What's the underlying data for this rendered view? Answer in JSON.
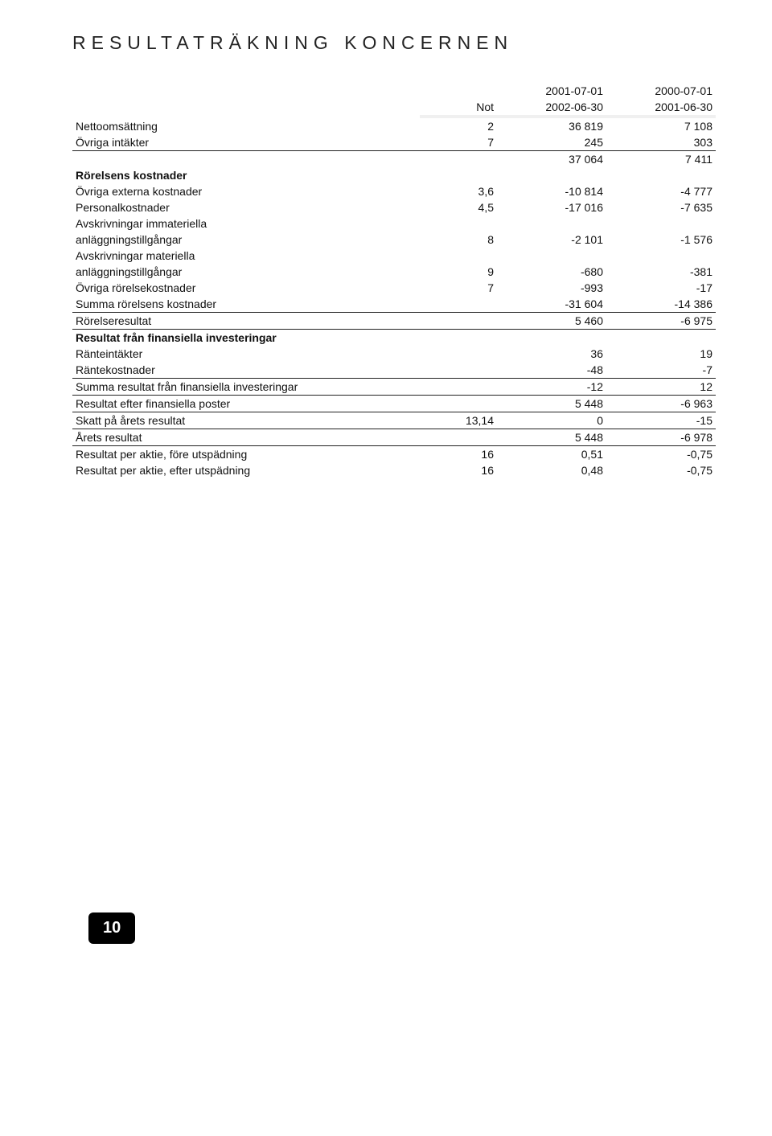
{
  "title": "RESULTATRÄKNING KONCERNEN",
  "header": {
    "not": "Not",
    "period1a": "2001-07-01",
    "period1b": "2002-06-30",
    "period2a": "2000-07-01",
    "period2b": "2001-06-30"
  },
  "r": {
    "netto": {
      "label": "Nettoomsättning",
      "not": "2",
      "v1": "36 819",
      "v2": "7 108"
    },
    "ovriga_int": {
      "label": "Övriga intäkter",
      "not": "7",
      "v1": "245",
      "v2": "303"
    },
    "sum_int": {
      "label": "",
      "not": "",
      "v1": "37 064",
      "v2": "7 411"
    },
    "rk_head": {
      "label": "Rörelsens kostnader"
    },
    "ext": {
      "label": "Övriga externa kostnader",
      "not": "3,6",
      "v1": "-10 814",
      "v2": "-4 777"
    },
    "pers": {
      "label": "Personalkostnader",
      "not": "4,5",
      "v1": "-17 016",
      "v2": "-7 635"
    },
    "avi_a": {
      "label": "Avskrivningar immateriella"
    },
    "avi_b": {
      "label": "anläggningstillgångar",
      "not": "8",
      "v1": "-2 101",
      "v2": "-1 576"
    },
    "avm_a": {
      "label": "Avskrivningar materiella"
    },
    "avm_b": {
      "label": "anläggningstillgångar",
      "not": "9",
      "v1": "-680",
      "v2": "-381"
    },
    "ork": {
      "label": "Övriga rörelsekostnader",
      "not": "7",
      "v1": "-993",
      "v2": "-17"
    },
    "srk": {
      "label": "Summa rörelsens kostnader",
      "not": "",
      "v1": "-31 604",
      "v2": "-14 386"
    },
    "rres": {
      "label": "Rörelseresultat",
      "not": "",
      "v1": "5 460",
      "v2": "-6 975"
    },
    "fin_head": {
      "label": "Resultat från finansiella investeringar"
    },
    "rint": {
      "label": "Ränteintäkter",
      "not": "",
      "v1": "36",
      "v2": "19"
    },
    "rkost": {
      "label": "Räntekostnader",
      "not": "",
      "v1": "-48",
      "v2": "-7"
    },
    "sfin": {
      "label": "Summa resultat från finansiella investeringar",
      "not": "",
      "v1": "-12",
      "v2": "12"
    },
    "refp": {
      "label": "Resultat efter finansiella poster",
      "not": "",
      "v1": "5 448",
      "v2": "-6 963"
    },
    "skatt": {
      "label": "Skatt på årets resultat",
      "not": "13,14",
      "v1": "0",
      "v2": "-15"
    },
    "ares": {
      "label": "Årets resultat",
      "not": "",
      "v1": "5 448",
      "v2": "-6 978"
    },
    "rpa_f": {
      "label": "Resultat per aktie, före utspädning",
      "not": "16",
      "v1": "0,51",
      "v2": "-0,75"
    },
    "rpa_e": {
      "label": "Resultat per aktie, efter utspädning",
      "not": "16",
      "v1": "0,48",
      "v2": "-0,75"
    }
  },
  "page_number": "10"
}
